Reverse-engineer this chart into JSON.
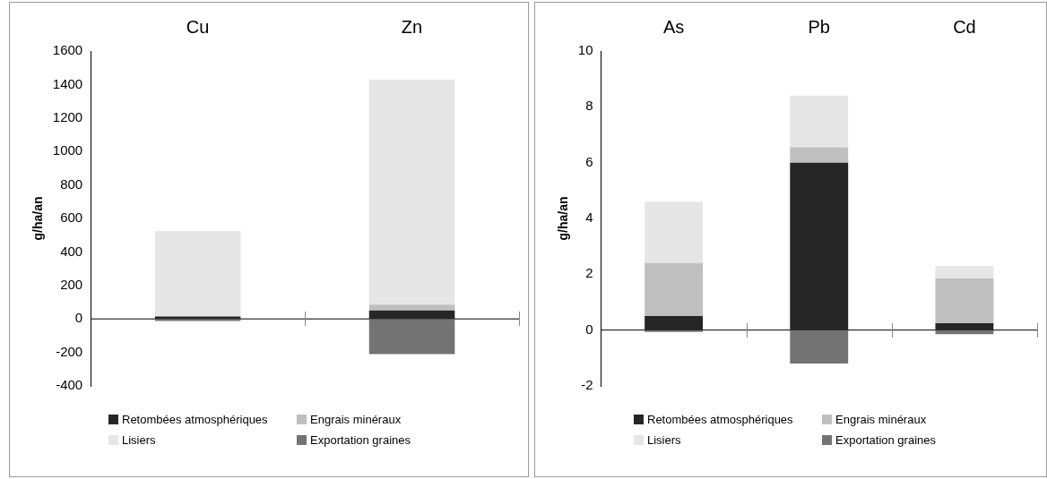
{
  "chart_data": [
    {
      "type": "bar",
      "stacked": true,
      "categories": [
        "Cu",
        "Zn"
      ],
      "ylabel": "g/ha/an",
      "ylim": [
        -400,
        1600
      ],
      "yticks": [
        -400,
        -200,
        0,
        200,
        400,
        600,
        800,
        1000,
        1200,
        1400,
        1600
      ],
      "legend": "bottom",
      "series": [
        {
          "name": "Retombées atmosphériques",
          "color": "#262626",
          "values": [
            15,
            50
          ]
        },
        {
          "name": "Engrais minéraux",
          "color": "#bfbfbf",
          "values": [
            0,
            35
          ]
        },
        {
          "name": "Lisiers",
          "color": "#e6e6e6",
          "values": [
            510,
            1345
          ]
        },
        {
          "name": "Exportation graines",
          "color": "#737373",
          "values": [
            -12,
            -210
          ]
        }
      ]
    },
    {
      "type": "bar",
      "stacked": true,
      "categories": [
        "As",
        "Pb",
        "Cd"
      ],
      "ylabel": "g/ha/an",
      "ylim": [
        -2,
        10
      ],
      "yticks": [
        -2,
        0,
        2,
        4,
        6,
        8,
        10
      ],
      "legend": "bottom",
      "series": [
        {
          "name": "Retombées atmosphériques",
          "color": "#262626",
          "values": [
            0.5,
            6.0,
            0.25
          ]
        },
        {
          "name": "Engrais minéraux",
          "color": "#bfbfbf",
          "values": [
            1.9,
            0.55,
            1.6
          ]
        },
        {
          "name": "Lisiers",
          "color": "#e6e6e6",
          "values": [
            2.2,
            1.85,
            0.45
          ]
        },
        {
          "name": "Exportation graines",
          "color": "#737373",
          "values": [
            -0.07,
            -1.2,
            -0.15
          ]
        }
      ]
    }
  ]
}
